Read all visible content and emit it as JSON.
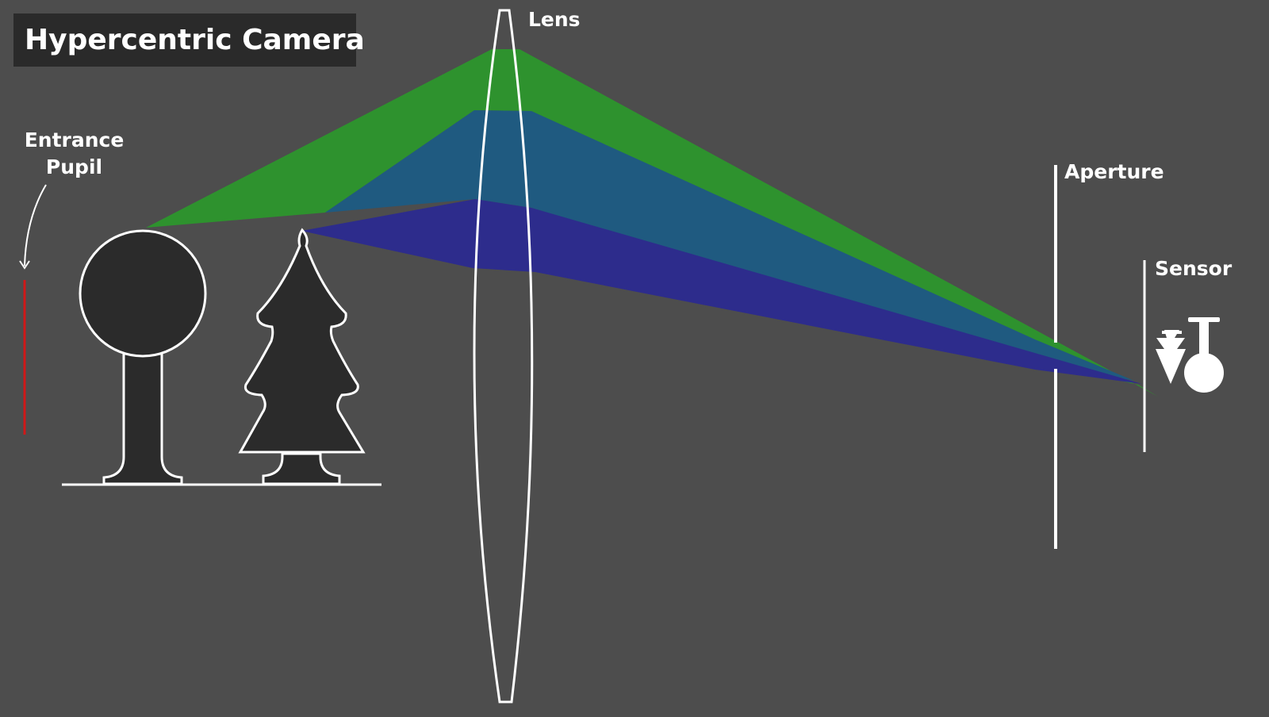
{
  "title": "Hypercentric Camera",
  "labels": {
    "entrance_pupil_line1": "Entrance",
    "entrance_pupil_line2": "Pupil",
    "lens": "Lens",
    "aperture": "Aperture",
    "sensor": "Sensor"
  },
  "colors": {
    "background": "#4d4d4d",
    "title_box": "#2a2a2a",
    "outline": "#ffffff",
    "object_fill": "#2b2b2b",
    "entrance_pupil": "#d01818",
    "ray_bundle_green": "#2e922e",
    "ray_bundle_blue": "#1f5a80",
    "ray_bundle_indigo": "#2d2c8c"
  }
}
